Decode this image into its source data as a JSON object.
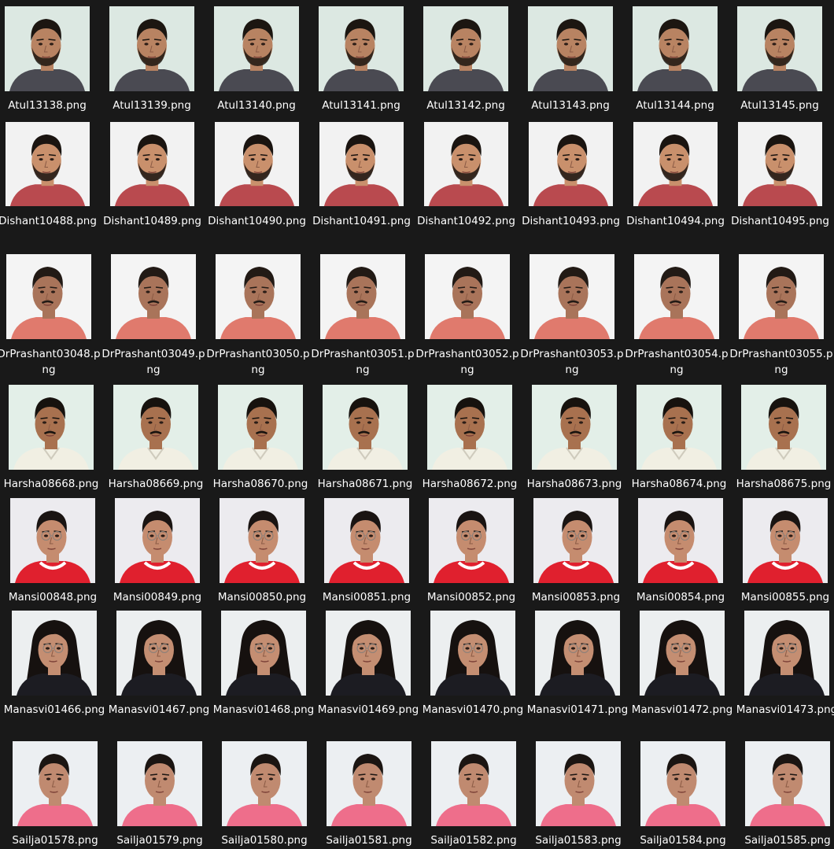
{
  "window": {
    "view": "File Explorer large-icons view"
  },
  "colors": {
    "background": "#191919",
    "label_text": "#ffffff"
  },
  "people": [
    {
      "name": "Atul",
      "shirt": "#4a4a52",
      "bg": "#dce8e2",
      "hair": "#1c1611",
      "skin": "#b88362",
      "beard": true,
      "long_hair": false,
      "glasses": false,
      "files": [
        "Atul13138.png",
        "Atul13139.png",
        "Atul13140.png",
        "Atul13141.png",
        "Atul13142.png",
        "Atul13143.png",
        "Atul13144.png",
        "Atul13145.png"
      ]
    },
    {
      "name": "Dishant",
      "shirt": "#b94a4f",
      "bg": "#f2f2f2",
      "hair": "#1a1410",
      "skin": "#c9906c",
      "beard": true,
      "long_hair": false,
      "glasses": false,
      "files": [
        "Dishant10488.png",
        "Dishant10489.png",
        "Dishant10490.png",
        "Dishant10491.png",
        "Dishant10492.png",
        "Dishant10493.png",
        "Dishant10494.png",
        "Dishant10495.png"
      ]
    },
    {
      "name": "DrPrashant",
      "shirt": "#e07a6d",
      "bg": "#f4f4f4",
      "hair": "#221a15",
      "skin": "#a9745a",
      "beard": false,
      "long_hair": false,
      "glasses": false,
      "files": [
        "DrPrashant03048.png",
        "DrPrashant03049.png",
        "DrPrashant03050.png",
        "DrPrashant03051.png",
        "DrPrashant03052.png",
        "DrPrashant03053.png",
        "DrPrashant03054.png",
        "DrPrashant03055.png"
      ]
    },
    {
      "name": "Harsha",
      "shirt": "#f1efe3",
      "bg": "#e3efe8",
      "hair": "#17120e",
      "skin": "#a8714f",
      "beard": false,
      "long_hair": false,
      "glasses": false,
      "files": [
        "Harsha08668.png",
        "Harsha08669.png",
        "Harsha08670.png",
        "Harsha08671.png",
        "Harsha08672.png",
        "Harsha08673.png",
        "Harsha08674.png",
        "Harsha08675.png"
      ]
    },
    {
      "name": "Mansi",
      "shirt": "#e0202e",
      "bg": "#ecebef",
      "hair": "#1a1412",
      "skin": "#c58c6f",
      "beard": false,
      "long_hair": false,
      "glasses": true,
      "files": [
        "Mansi00848.png",
        "Mansi00849.png",
        "Mansi00850.png",
        "Mansi00851.png",
        "Mansi00852.png",
        "Mansi00853.png",
        "Mansi00854.png",
        "Mansi00855.png"
      ]
    },
    {
      "name": "Manasvi",
      "shirt": "#1c1c22",
      "bg": "#eceff0",
      "hair": "#16110f",
      "skin": "#c48e72",
      "beard": false,
      "long_hair": true,
      "glasses": true,
      "files": [
        "Manasvi01466.png",
        "Manasvi01467.png",
        "Manasvi01468.png",
        "Manasvi01469.png",
        "Manasvi01470.png",
        "Manasvi01471.png",
        "Manasvi01472.png",
        "Manasvi01473.png"
      ]
    },
    {
      "name": "Sailja",
      "shirt": "#ee6e8b",
      "bg": "#eceff2",
      "hair": "#1b1512",
      "skin": "#c08a70",
      "beard": false,
      "long_hair": false,
      "glasses": false,
      "files": [
        "Sailja01578.png",
        "Sailja01579.png",
        "Sailja01580.png",
        "Sailja01581.png",
        "Sailja01582.png",
        "Sailja01583.png",
        "Sailja01584.png",
        "Sailja01585.png"
      ]
    }
  ]
}
